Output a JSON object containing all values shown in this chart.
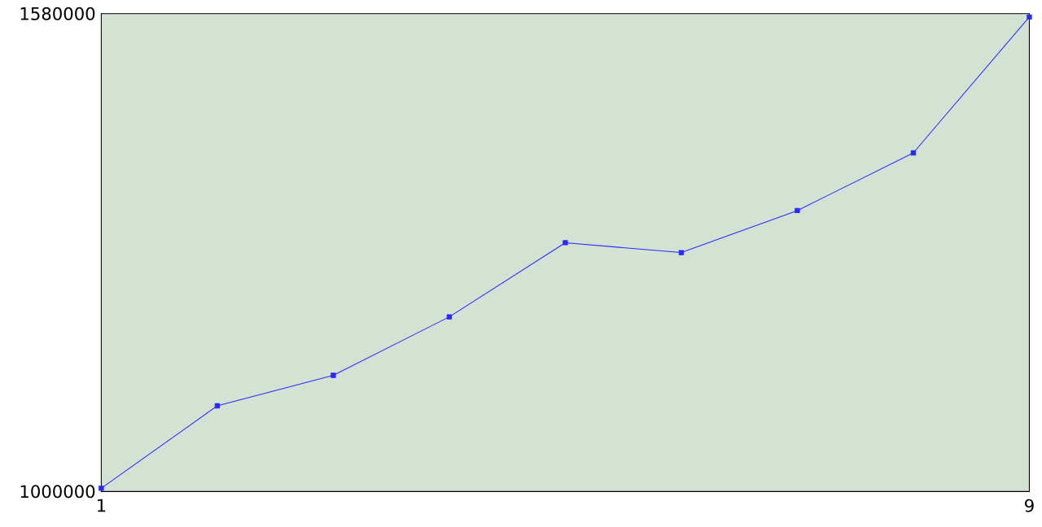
{
  "chart_data": {
    "type": "line",
    "x": [
      1,
      2,
      3,
      4,
      5,
      6,
      7,
      8,
      9
    ],
    "values": [
      1004000,
      1104000,
      1141000,
      1212000,
      1302000,
      1290000,
      1341000,
      1411000,
      1576000
    ],
    "color": "#2a2aff",
    "marker": "square",
    "line_style": "solid",
    "xlim": [
      1,
      9
    ],
    "ylim": [
      1000000,
      1580000
    ],
    "xticks": [
      1,
      9
    ],
    "yticks": [
      1000000,
      1580000
    ]
  }
}
